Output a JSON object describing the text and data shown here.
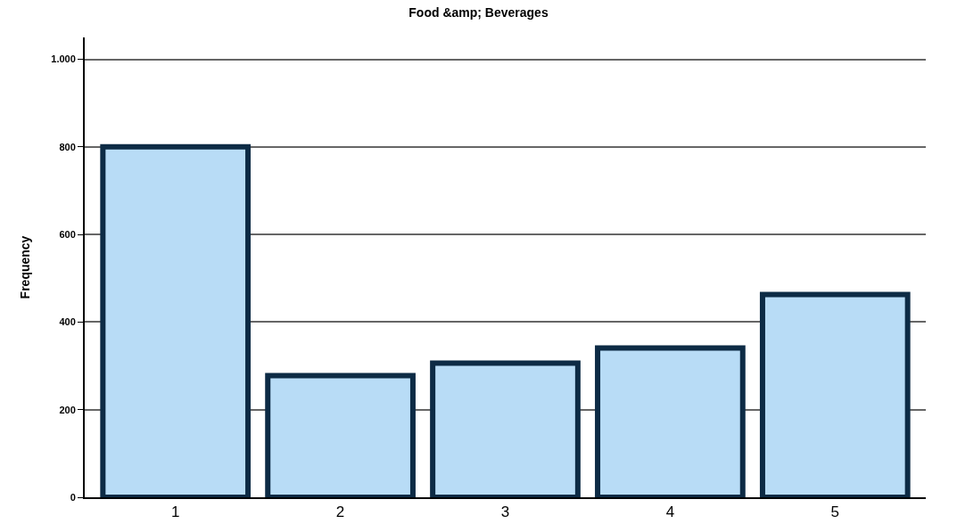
{
  "chart_data": {
    "type": "bar",
    "title": "Food &amp; Beverages",
    "ylabel": "Frequency",
    "categories": [
      "1",
      "2",
      "3",
      "4",
      "5"
    ],
    "values": [
      800,
      278,
      306,
      341,
      463
    ],
    "color": "#b8dcf6",
    "ylim": [
      0,
      1050
    ],
    "yticks": [
      0,
      200,
      400,
      600,
      800,
      {
        "value": 1000,
        "label": "1.000"
      }
    ],
    "grid": "y"
  }
}
